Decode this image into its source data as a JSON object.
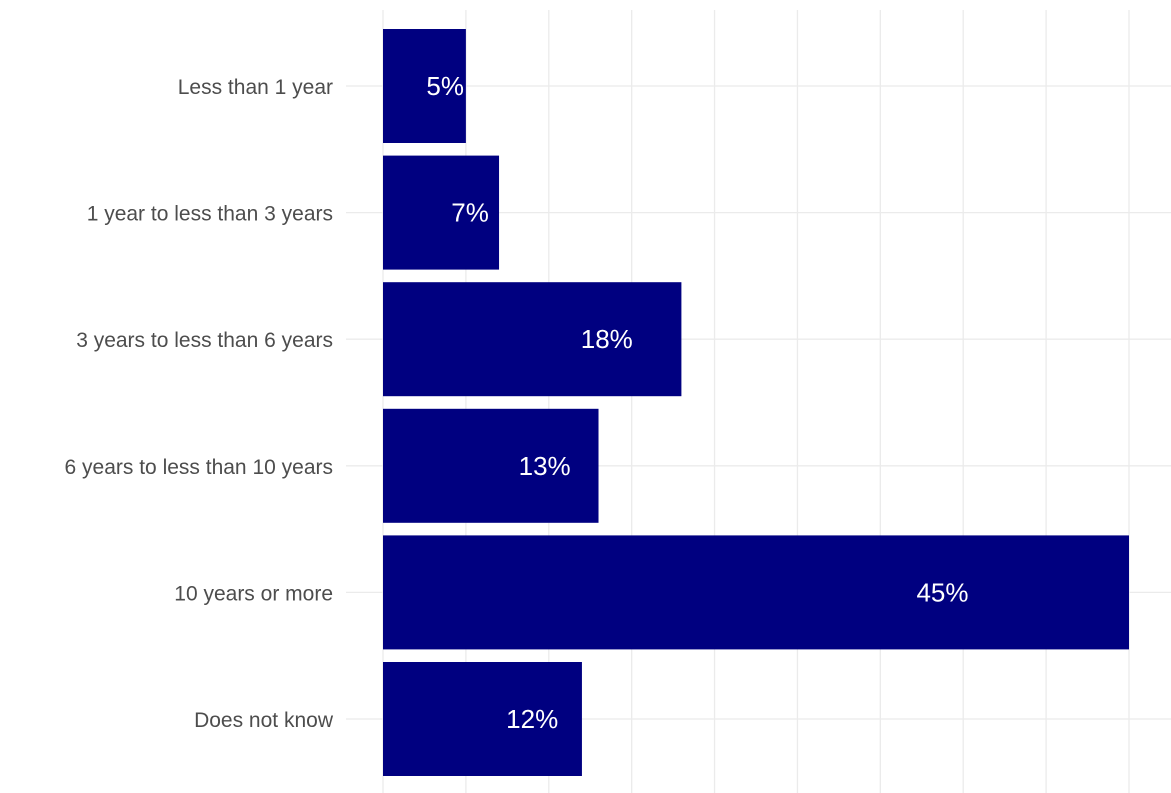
{
  "chart_data": {
    "type": "bar",
    "orientation": "horizontal",
    "categories": [
      "Less than 1 year",
      "1 year to less than 3 years",
      "3 years to less than 6 years",
      "6 years to less than 10 years",
      "10 years or more",
      "Does not know"
    ],
    "values": [
      5,
      7,
      18,
      13,
      45,
      12
    ],
    "data_labels": [
      "5%",
      "7%",
      "18%",
      "13%",
      "45%",
      "12%"
    ],
    "title": "",
    "xlabel": "",
    "ylabel": "",
    "xlim": [
      0,
      47
    ],
    "grid": true,
    "legend": "none",
    "colors": {
      "bar": "#000080",
      "grid": "#ebebeb",
      "category_text": "#4d4d4d",
      "label_text": "#ffffff"
    }
  }
}
